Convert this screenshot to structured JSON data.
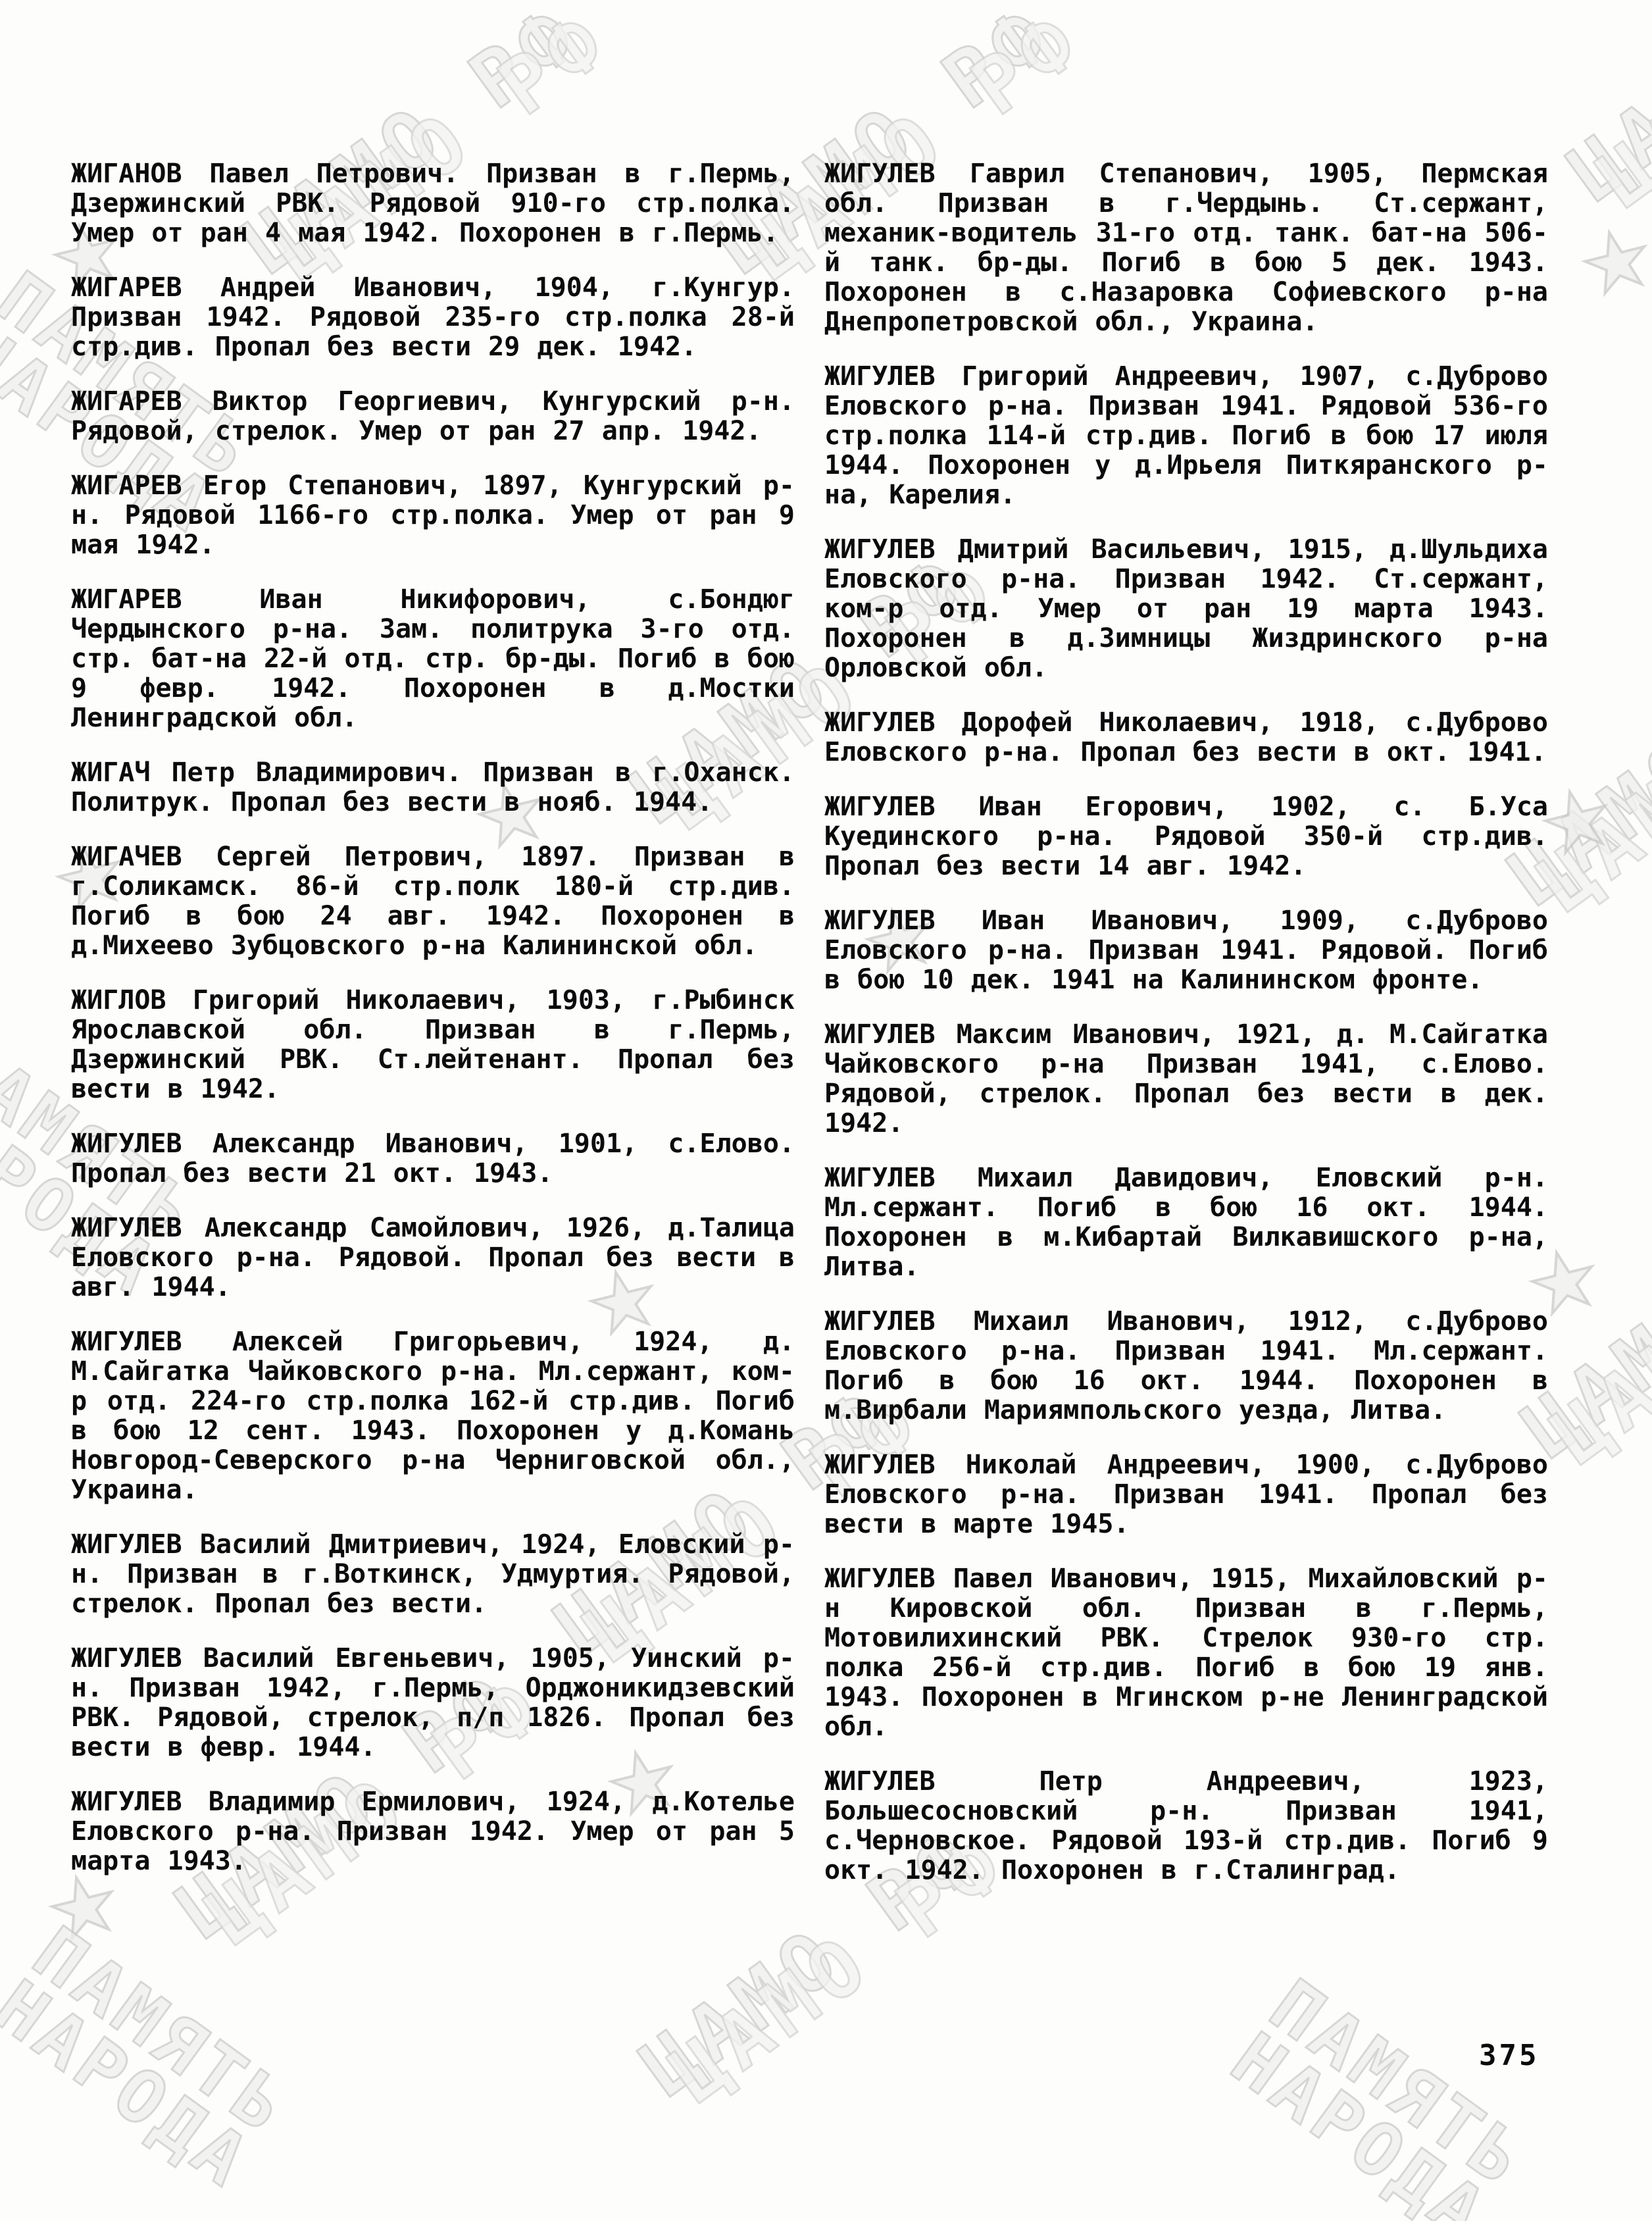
{
  "page": {
    "number": "375"
  },
  "watermarks": {
    "archive": "ЦАМО РФ",
    "memory_line1": "ПАМЯТЬ",
    "memory_line2": "НАРОДА",
    "star": "★"
  },
  "columns": {
    "left": [
      "ЖИГАНОВ Павел Петрович. Призван в г.Пермь, Дзержинский РВК. Рядовой 910-го стр.полка. Умер от ран 4 мая 1942. Похоронен в г.Пермь.",
      "ЖИГАРЕВ Андрей Иванович, 1904, г.Кунгур. Призван 1942. Рядовой 235-го стр.полка 28-й стр.див. Пропал без вести 29 дек. 1942.",
      "ЖИГАРЕВ Виктор Георгиевич, Кунгурский р-н. Рядовой, стрелок. Умер от ран 27 апр. 1942.",
      "ЖИГАРЕВ Егор Степанович, 1897, Кунгурский р-н. Рядовой 1166-го стр.полка. Умер от ран 9 мая 1942.",
      "ЖИГАРЕВ Иван Никифорович, с.Бондюг Чердынского р-на. Зам. политрука 3-го отд. стр. бат-на 22-й отд. стр. бр-ды. Погиб в бою 9 февр. 1942. Похоронен в д.Мостки Ленинградской обл.",
      "ЖИГАЧ Петр Владимирович. Призван в г.Оханск. Политрук. Пропал без вести в нояб. 1944.",
      "ЖИГАЧЕВ Сергей Петрович, 1897. Призван в г.Соликамск. 86-й стр.полк 180-й стр.див. Погиб в бою 24 авг. 1942. Похоронен в д.Михеево Зубцовского р-на Калининской обл.",
      "ЖИГЛОВ Григорий Николаевич, 1903, г.Рыбинск Ярославской обл. Призван в г.Пермь, Дзержинский РВК. Ст.лейтенант. Пропал без вести в 1942.",
      "ЖИГУЛЕВ Александр Иванович, 1901, с.Елово. Пропал без вести 21 окт. 1943.",
      "ЖИГУЛЕВ Александр Самойлович, 1926, д.Талица Еловского р-на. Рядовой. Пропал без вести в авг. 1944.",
      "ЖИГУЛЕВ Алексей Григорьевич, 1924, д. М.Сайгатка Чайковского р-на. Мл.сержант, ком-р отд. 224-го стр.полка 162-й стр.див. Погиб в бою 12 сент. 1943. Похоронен у д.Комань Новгород-Северского р-на Черниговской обл., Украина.",
      "ЖИГУЛЕВ Василий Дмитриевич, 1924, Еловский р-н. Призван в г.Воткинск, Удмуртия. Рядовой, стрелок. Пропал без вести.",
      "ЖИГУЛЕВ Василий Евгеньевич, 1905, Уинский р-н. Призван 1942, г.Пермь, Орджоникидзевский РВК. Рядовой, стрелок, п/п 1826. Пропал без вести в февр. 1944.",
      "ЖИГУЛЕВ Владимир Ермилович, 1924, д.Котелье Еловского р-на. Призван 1942. Умер от ран 5 марта 1943."
    ],
    "right": [
      "ЖИГУЛЕВ Гаврил Степанович, 1905, Пермская обл. Призван в г.Чердынь. Ст.сержант, механик-водитель 31-го отд. танк. бат-на 506-й танк. бр-ды. Погиб в бою 5 дек. 1943. Похоронен в с.Назаровка Софиевского р-на Днепропетровской обл., Украина.",
      "ЖИГУЛЕВ Григорий Андреевич, 1907, с.Дуброво Еловского р-на. Призван 1941. Рядовой 536-го стр.полка 114-й стр.див. Погиб в бою 17 июля 1944. Похоронен у д.Ирьеля Питкяранского р-на, Карелия.",
      "ЖИГУЛЕВ Дмитрий Васильевич, 1915, д.Шульдиха Еловского р-на. Призван 1942. Ст.сержант, ком-р отд. Умер от ран 19 марта 1943. Похоронен в д.Зимницы Жиздринского р-на Орловской обл.",
      "ЖИГУЛЕВ Дорофей Николаевич, 1918, с.Дуброво Еловского р-на. Пропал без вести в окт. 1941.",
      "ЖИГУЛЕВ Иван Егорович, 1902, с. Б.Уса Куединского р-на. Рядовой 350-й стр.див. Пропал без вести 14 авг. 1942.",
      "ЖИГУЛЕВ Иван Иванович, 1909, с.Дуброво Еловского р-на. Призван 1941. Рядовой. Погиб в бою 10 дек. 1941 на Калининском фронте.",
      "ЖИГУЛЕВ Максим Иванович, 1921, д. М.Сайгатка Чайковского р-на Призван 1941, с.Елово. Рядовой, стрелок. Пропал без вести в дек. 1942.",
      "ЖИГУЛЕВ Михаил Давидович, Еловский р-н. Мл.сержант. Погиб в бою 16 окт. 1944. Похоронен в м.Кибартай Вилкавишского р-на, Литва.",
      "ЖИГУЛЕВ Михаил Иванович, 1912, с.Дуброво Еловского р-на. Призван 1941. Мл.сержант. Погиб в бою 16 окт. 1944. Похоронен в м.Вирбали Мариямпольского уезда, Литва.",
      "ЖИГУЛЕВ Николай Андреевич, 1900, с.Дуброво Еловского р-на. Призван 1941. Пропал без вести в марте 1945.",
      "ЖИГУЛЕВ Павел Иванович, 1915, Михайловский р-н Кировской обл. Призван в г.Пермь, Мотовилихинский РВК. Стрелок 930-го стр. полка 256-й стр.див. Погиб в бою 19 янв. 1943. Похоронен в Мгинском р-не Ленинградской обл.",
      "ЖИГУЛЕВ Петр Андреевич, 1923, Большесосновский р-н. Призван 1941, с.Черновское. Рядовой 193-й стр.див. Погиб 9 окт. 1942. Похоронен в г.Сталинград."
    ]
  }
}
